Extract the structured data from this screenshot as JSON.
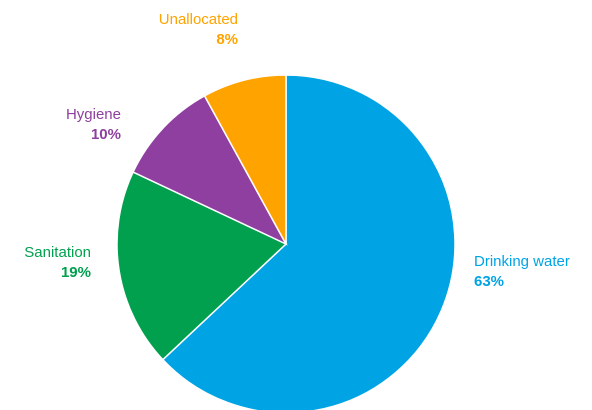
{
  "chart_data": {
    "type": "pie",
    "title": "",
    "slices": [
      {
        "label": "Drinking water",
        "value": 63,
        "value_label": "63%",
        "color": "#00A3E4"
      },
      {
        "label": "Sanitation",
        "value": 19,
        "value_label": "19%",
        "color": "#00A04E"
      },
      {
        "label": "Hygiene",
        "value": 10,
        "value_label": "10%",
        "color": "#8E3F9F"
      },
      {
        "label": "Unallocated",
        "value": 8,
        "value_label": "8%",
        "color": "#FFA300"
      }
    ],
    "start": "12 o'clock",
    "direction": "clockwise",
    "legend": "none (direct labels)"
  }
}
